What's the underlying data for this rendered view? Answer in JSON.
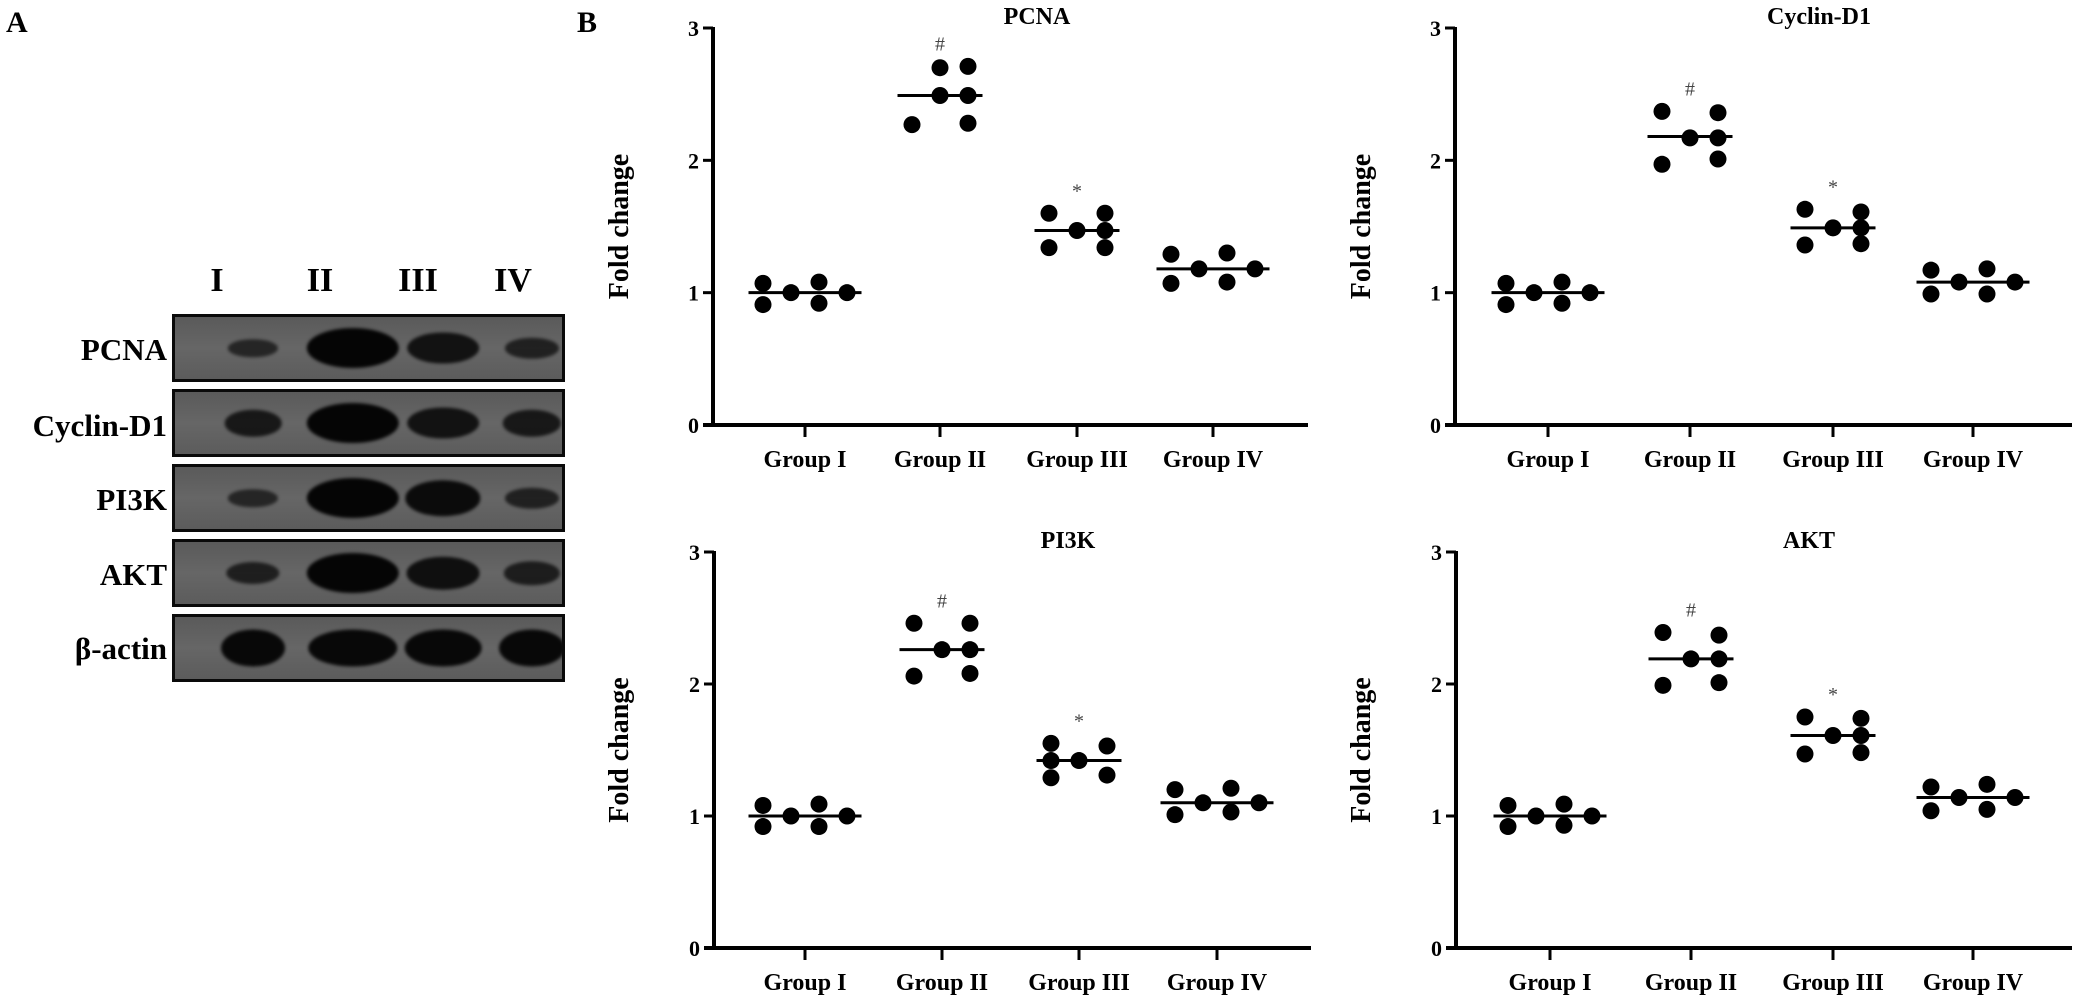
{
  "panel_a_label": "A",
  "panel_b_label": "B",
  "blot": {
    "lanes": [
      "I",
      "II",
      "III",
      "IV"
    ],
    "rows": [
      {
        "protein": "PCNA",
        "band_intensity": [
          0.25,
          1.0,
          0.7,
          0.35
        ]
      },
      {
        "protein": "Cyclin-D1",
        "band_intensity": [
          0.55,
          1.0,
          0.7,
          0.55
        ]
      },
      {
        "protein": "PI3K",
        "band_intensity": [
          0.25,
          1.0,
          0.85,
          0.35
        ]
      },
      {
        "protein": "AKT",
        "band_intensity": [
          0.4,
          1.0,
          0.75,
          0.45
        ]
      },
      {
        "protein": "β-actin",
        "band_intensity": [
          0.9,
          0.9,
          0.9,
          0.9
        ]
      }
    ]
  },
  "chart_data": [
    {
      "type": "scatter",
      "title": "PCNA",
      "xlabel": "",
      "ylabel": "Fold change",
      "ylim": [
        0,
        3
      ],
      "yticks": [
        "0",
        "1",
        "2",
        "3"
      ],
      "categories": [
        "Group I",
        "Group II",
        "Group III",
        "Group IV"
      ],
      "series": [
        {
          "name": "Group I",
          "values": [
            1.07,
            0.91,
            1.0,
            1.08,
            0.92,
            1.0
          ],
          "median": 1.0,
          "annotation": ""
        },
        {
          "name": "Group II",
          "values": [
            2.27,
            2.7,
            2.49,
            2.71,
            2.49,
            2.28
          ],
          "median": 2.49,
          "annotation": "#"
        },
        {
          "name": "Group III",
          "values": [
            1.6,
            1.34,
            1.47,
            1.6,
            1.47,
            1.34
          ],
          "median": 1.47,
          "annotation": "*"
        },
        {
          "name": "Group IV",
          "values": [
            1.29,
            1.07,
            1.18,
            1.3,
            1.08,
            1.18
          ],
          "median": 1.18,
          "annotation": ""
        }
      ],
      "grid": false,
      "legend": "none"
    },
    {
      "type": "scatter",
      "title": "Cyclin-D1",
      "xlabel": "",
      "ylabel": "Fold change",
      "ylim": [
        0,
        3
      ],
      "yticks": [
        "0",
        "1",
        "2",
        "3"
      ],
      "categories": [
        "Group I",
        "Group II",
        "Group III",
        "Group IV"
      ],
      "series": [
        {
          "name": "Group I",
          "values": [
            1.07,
            0.91,
            1.0,
            1.08,
            0.92,
            1.0
          ],
          "median": 1.0,
          "annotation": ""
        },
        {
          "name": "Group II",
          "values": [
            2.37,
            1.97,
            2.17,
            2.36,
            2.17,
            2.01
          ],
          "median": 2.18,
          "annotation": "#"
        },
        {
          "name": "Group III",
          "values": [
            1.63,
            1.36,
            1.49,
            1.61,
            1.49,
            1.37
          ],
          "median": 1.49,
          "annotation": "*"
        },
        {
          "name": "Group IV",
          "values": [
            1.17,
            0.99,
            1.08,
            1.18,
            0.99,
            1.08
          ],
          "median": 1.08,
          "annotation": ""
        }
      ],
      "grid": false,
      "legend": "none"
    },
    {
      "type": "scatter",
      "title": "PI3K",
      "xlabel": "",
      "ylabel": "Fold change",
      "ylim": [
        0,
        3
      ],
      "yticks": [
        "0",
        "1",
        "2",
        "3"
      ],
      "categories": [
        "Group I",
        "Group II",
        "Group III",
        "Group IV"
      ],
      "series": [
        {
          "name": "Group I",
          "values": [
            1.08,
            0.92,
            1.0,
            1.09,
            0.92,
            1.0
          ],
          "median": 1.0,
          "annotation": ""
        },
        {
          "name": "Group II",
          "values": [
            2.46,
            2.06,
            2.26,
            2.46,
            2.26,
            2.08
          ],
          "median": 2.26,
          "annotation": "#"
        },
        {
          "name": "Group III",
          "values": [
            1.55,
            1.42,
            1.29,
            1.42,
            1.53,
            1.31
          ],
          "median": 1.42,
          "annotation": "*"
        },
        {
          "name": "Group IV",
          "values": [
            1.2,
            1.01,
            1.1,
            1.21,
            1.03,
            1.1
          ],
          "median": 1.1,
          "annotation": ""
        }
      ],
      "grid": false,
      "legend": "none"
    },
    {
      "type": "scatter",
      "title": "AKT",
      "xlabel": "",
      "ylabel": "Fold change",
      "ylim": [
        0,
        3
      ],
      "yticks": [
        "0",
        "1",
        "2",
        "3"
      ],
      "categories": [
        "Group I",
        "Group II",
        "Group III",
        "Group IV"
      ],
      "series": [
        {
          "name": "Group I",
          "values": [
            1.08,
            0.92,
            1.0,
            1.09,
            0.93,
            1.0
          ],
          "median": 1.0,
          "annotation": ""
        },
        {
          "name": "Group II",
          "values": [
            2.39,
            1.99,
            2.19,
            2.37,
            2.19,
            2.01
          ],
          "median": 2.19,
          "annotation": "#"
        },
        {
          "name": "Group III",
          "values": [
            1.75,
            1.47,
            1.61,
            1.74,
            1.61,
            1.48
          ],
          "median": 1.61,
          "annotation": "*"
        },
        {
          "name": "Group IV",
          "values": [
            1.22,
            1.04,
            1.14,
            1.24,
            1.05,
            1.14
          ],
          "median": 1.14,
          "annotation": ""
        }
      ],
      "grid": false,
      "legend": "none"
    }
  ]
}
